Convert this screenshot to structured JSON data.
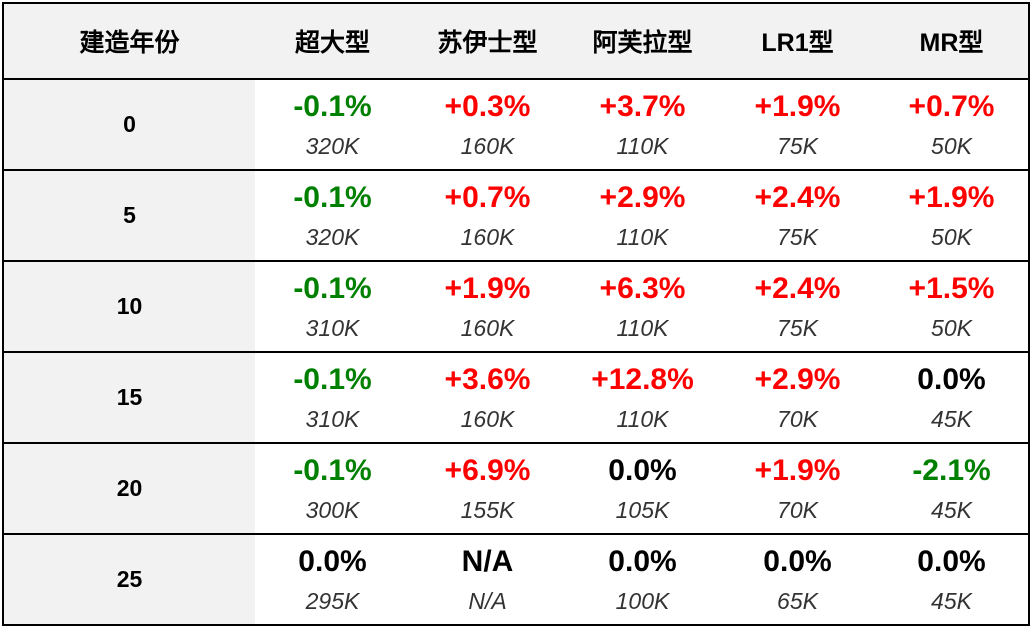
{
  "header": {
    "year_label": "建造年份",
    "columns": [
      "超大型",
      "苏伊士型",
      "阿芙拉型",
      "LR1型",
      "MR型"
    ]
  },
  "colors": {
    "positive": "#ff0000",
    "negative": "#008000",
    "neutral": "#000000"
  },
  "rows": [
    {
      "year": "0",
      "cells": [
        {
          "change": "-0.1%",
          "price": "320K",
          "sign": "neg"
        },
        {
          "change": "+0.3%",
          "price": "160K",
          "sign": "pos"
        },
        {
          "change": "+3.7%",
          "price": "110K",
          "sign": "pos"
        },
        {
          "change": "+1.9%",
          "price": "75K",
          "sign": "pos"
        },
        {
          "change": "+0.7%",
          "price": "50K",
          "sign": "pos"
        }
      ]
    },
    {
      "year": "5",
      "cells": [
        {
          "change": "-0.1%",
          "price": "320K",
          "sign": "neg"
        },
        {
          "change": "+0.7%",
          "price": "160K",
          "sign": "pos"
        },
        {
          "change": "+2.9%",
          "price": "110K",
          "sign": "pos"
        },
        {
          "change": "+2.4%",
          "price": "75K",
          "sign": "pos"
        },
        {
          "change": "+1.9%",
          "price": "50K",
          "sign": "pos"
        }
      ]
    },
    {
      "year": "10",
      "cells": [
        {
          "change": "-0.1%",
          "price": "310K",
          "sign": "neg"
        },
        {
          "change": "+1.9%",
          "price": "160K",
          "sign": "pos"
        },
        {
          "change": "+6.3%",
          "price": "110K",
          "sign": "pos"
        },
        {
          "change": "+2.4%",
          "price": "75K",
          "sign": "pos"
        },
        {
          "change": "+1.5%",
          "price": "50K",
          "sign": "pos"
        }
      ]
    },
    {
      "year": "15",
      "cells": [
        {
          "change": "-0.1%",
          "price": "310K",
          "sign": "neg"
        },
        {
          "change": "+3.6%",
          "price": "160K",
          "sign": "pos"
        },
        {
          "change": "+12.8%",
          "price": "110K",
          "sign": "pos"
        },
        {
          "change": "+2.9%",
          "price": "70K",
          "sign": "pos"
        },
        {
          "change": "0.0%",
          "price": "45K",
          "sign": "zero"
        }
      ]
    },
    {
      "year": "20",
      "cells": [
        {
          "change": "-0.1%",
          "price": "300K",
          "sign": "neg"
        },
        {
          "change": "+6.9%",
          "price": "155K",
          "sign": "pos"
        },
        {
          "change": "0.0%",
          "price": "105K",
          "sign": "zero"
        },
        {
          "change": "+1.9%",
          "price": "70K",
          "sign": "pos"
        },
        {
          "change": "-2.1%",
          "price": "45K",
          "sign": "neg"
        }
      ]
    },
    {
      "year": "25",
      "cells": [
        {
          "change": "0.0%",
          "price": "295K",
          "sign": "zero"
        },
        {
          "change": "N/A",
          "price": "N/A",
          "sign": "zero"
        },
        {
          "change": "0.0%",
          "price": "100K",
          "sign": "zero"
        },
        {
          "change": "0.0%",
          "price": "65K",
          "sign": "zero"
        },
        {
          "change": "0.0%",
          "price": "45K",
          "sign": "zero"
        }
      ]
    }
  ]
}
